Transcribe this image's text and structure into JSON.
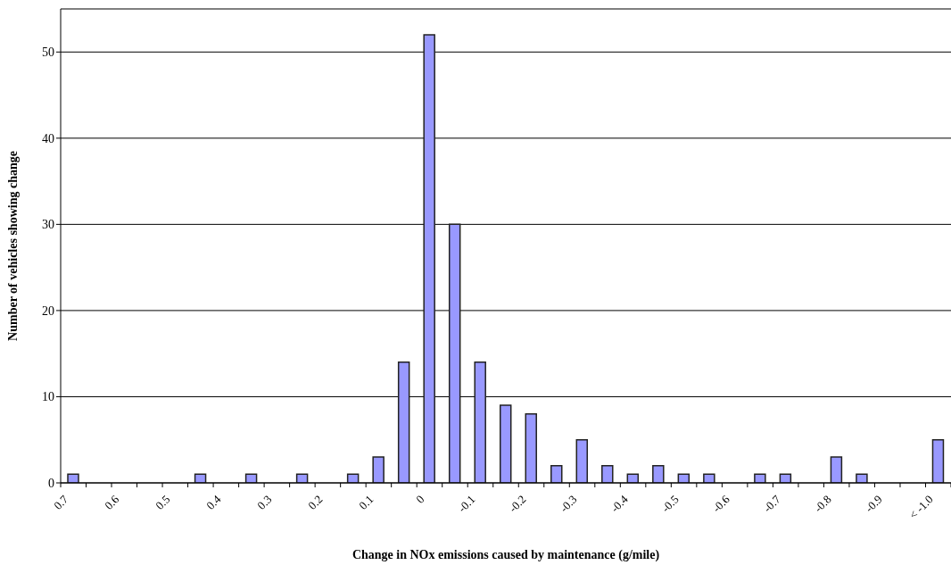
{
  "chart_data": {
    "type": "bar",
    "categories": [
      "0.7",
      null,
      "0.6",
      null,
      "0.5",
      null,
      "0.4",
      null,
      "0.3",
      null,
      "0.2",
      null,
      "0.1",
      null,
      "0",
      null,
      "-0.1",
      null,
      "-0.2",
      null,
      "-0.3",
      null,
      "-0.4",
      null,
      "-0.5",
      null,
      "-0.6",
      null,
      "-0.7",
      null,
      "-0.8",
      null,
      "-0.9",
      null,
      "< -1.0"
    ],
    "values": [
      1,
      0,
      0,
      0,
      0,
      1,
      0,
      1,
      0,
      1,
      0,
      1,
      3,
      14,
      52,
      30,
      14,
      9,
      8,
      2,
      5,
      2,
      1,
      2,
      1,
      1,
      0,
      1,
      1,
      0,
      3,
      1,
      0,
      0,
      5
    ],
    "color": "#9999ff",
    "ylim": [
      0,
      55
    ],
    "yticks": [
      0,
      10,
      20,
      30,
      40,
      50
    ],
    "grid": "y",
    "xlabel": "Change in NOx emissions caused by maintenance (g/mile)",
    "ylabel": "Number of vehicles showing change"
  }
}
